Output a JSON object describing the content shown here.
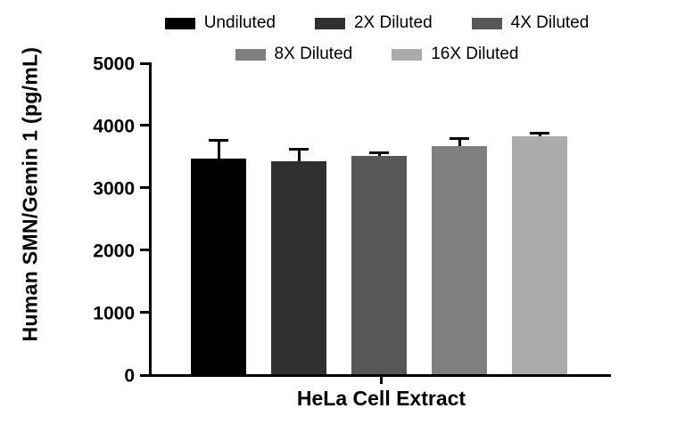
{
  "chart_data": {
    "type": "bar",
    "title": "",
    "xlabel": "HeLa Cell Extract",
    "ylabel": "Human SMN/Gemin 1 (pg/mL)",
    "ylim": [
      0,
      5000
    ],
    "yticks": [
      0,
      1000,
      2000,
      3000,
      4000,
      5000
    ],
    "categories": [
      "HeLa Cell Extract"
    ],
    "series": [
      {
        "name": "Undiluted",
        "value": 3460,
        "error_plus": 290,
        "color": "#000000"
      },
      {
        "name": "2X Diluted",
        "value": 3420,
        "error_plus": 190,
        "color": "#303030"
      },
      {
        "name": "4X Diluted",
        "value": 3500,
        "error_plus": 50,
        "color": "#575757"
      },
      {
        "name": "8X Diluted",
        "value": 3660,
        "error_plus": 120,
        "color": "#7f7f7f"
      },
      {
        "name": "16X Diluted",
        "value": 3810,
        "error_plus": 60,
        "color": "#ababab"
      }
    ],
    "legend_rows": [
      [
        0,
        1,
        2
      ],
      [
        3,
        4
      ]
    ],
    "legend_position": "top",
    "grid": false,
    "error_bar_color": "#000000",
    "axis_color": "#000000",
    "background": "#ffffff"
  }
}
